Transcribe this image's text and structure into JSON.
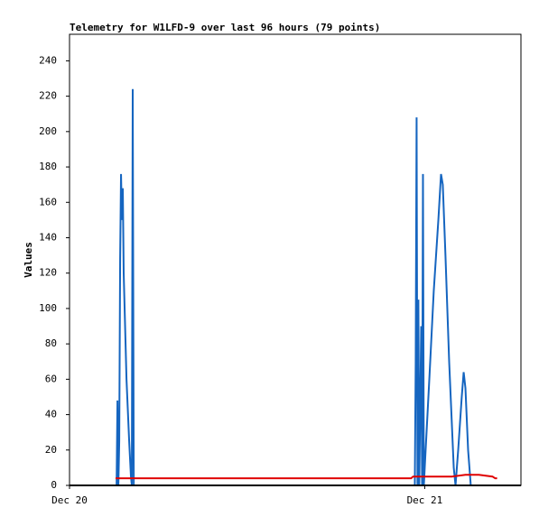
{
  "chart_data": {
    "type": "line",
    "title": "Telemetry for W1LFD-9 over last 96 hours (79 points)",
    "y_label": "Values",
    "xlim": [
      0,
      30.5
    ],
    "xticks": [
      {
        "value": 0,
        "label": "Dec 20"
      },
      {
        "value": 24,
        "label": "Dec 21"
      }
    ],
    "ylim": [
      0,
      255
    ],
    "yticks": [
      0,
      20,
      40,
      60,
      80,
      100,
      120,
      140,
      160,
      180,
      200,
      220,
      240
    ],
    "series": [
      {
        "color": "#1565c0",
        "x": [
          3.18,
          3.24,
          3.3,
          3.36,
          3.42,
          3.48,
          3.54,
          3.6,
          3.66,
          3.85,
          4.03,
          4.15,
          4.21,
          4.27,
          4.34,
          23.33,
          23.39,
          23.45,
          23.51,
          23.57,
          23.63,
          23.76,
          23.82,
          23.88,
          23.94,
          24.06,
          24.31,
          24.61,
          24.92,
          25.1,
          25.22,
          25.4,
          25.65,
          25.96,
          26.08,
          26.26,
          26.5,
          26.63,
          26.75,
          26.93,
          27.11
        ],
        "values": [
          0,
          48,
          0,
          25,
          128,
          176,
          150,
          168,
          120,
          60,
          25,
          5,
          0,
          224,
          0,
          0,
          70,
          208,
          0,
          105,
          0,
          90,
          0,
          176,
          0,
          20,
          60,
          110,
          150,
          176,
          170,
          130,
          70,
          10,
          0,
          20,
          50,
          64,
          55,
          20,
          0
        ]
      },
      {
        "color": "#e00000",
        "x": [
          3.11,
          23.08,
          23.21,
          24.61,
          25.83,
          26.75,
          27.66,
          28.58,
          28.76,
          28.89
        ],
        "values": [
          4,
          4,
          5,
          5,
          5,
          6,
          6,
          5,
          4,
          4
        ]
      }
    ]
  }
}
